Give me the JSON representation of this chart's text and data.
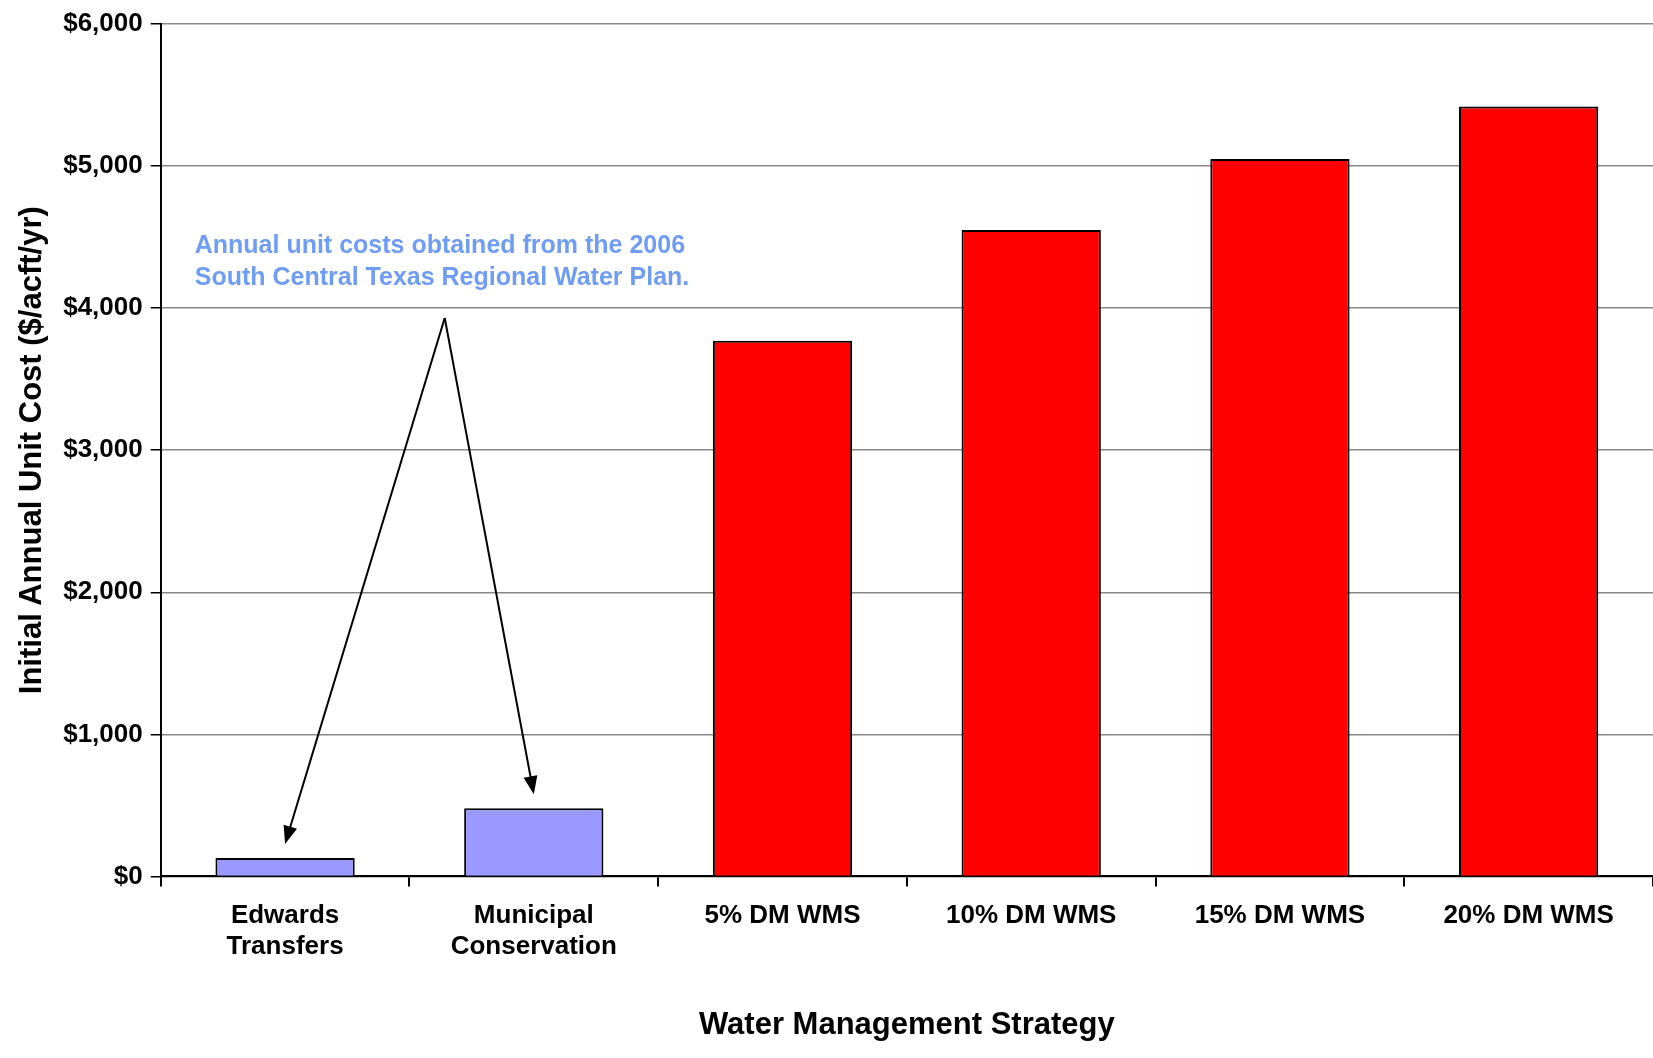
{
  "chart_data": {
    "type": "bar",
    "xlabel": "Water Management Strategy",
    "ylabel": "Initial Annual Unit Cost ($/acft/yr)",
    "categories": [
      "Edwards\nTransfers",
      "Municipal\nConservation",
      "5% DM WMS",
      "10% DM WMS",
      "15% DM WMS",
      "20% DM WMS"
    ],
    "values": [
      130,
      480,
      3770,
      4550,
      5050,
      5420
    ],
    "colors": [
      "#9999ff",
      "#9999ff",
      "#ff0000",
      "#ff0000",
      "#ff0000",
      "#ff0000"
    ],
    "ylim": [
      0,
      6000
    ],
    "yticks": [
      {
        "value": 0,
        "label": "$0"
      },
      {
        "value": 1000,
        "label": "$1,000"
      },
      {
        "value": 2000,
        "label": "$2,000"
      },
      {
        "value": 3000,
        "label": "$3,000"
      },
      {
        "value": 4000,
        "label": "$4,000"
      },
      {
        "value": 5000,
        "label": "$5,000"
      },
      {
        "value": 6000,
        "label": "$6,000"
      }
    ],
    "grid": "y",
    "legend": false,
    "annotations": [
      "Annual unit costs obtained from the 2006\nSouth Central Texas Regional Water Plan."
    ]
  }
}
